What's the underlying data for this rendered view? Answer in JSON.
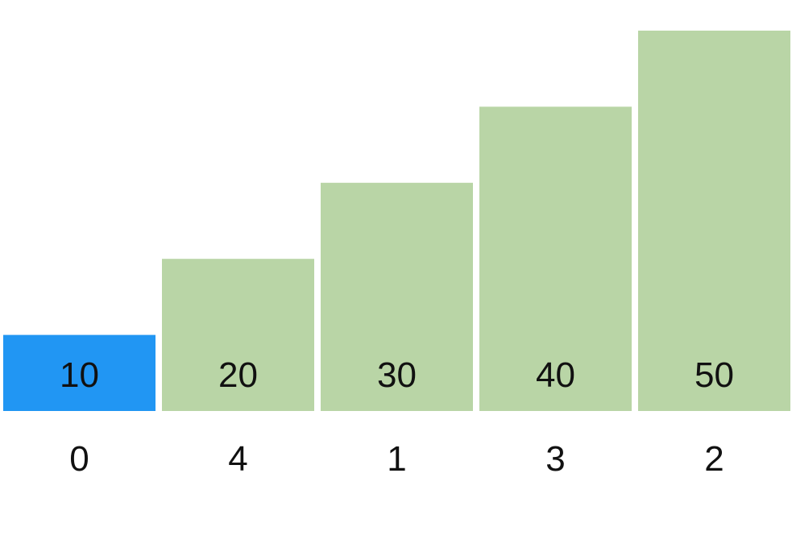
{
  "chart_data": {
    "type": "bar",
    "categories": [
      "0",
      "4",
      "1",
      "3",
      "2"
    ],
    "values": [
      10,
      20,
      30,
      40,
      50
    ],
    "highlighted_index": 0,
    "ylim": [
      0,
      50
    ],
    "grid": false,
    "title": "",
    "xlabel": "",
    "ylabel": ""
  },
  "colors": {
    "highlight": "#2196f3",
    "bar": "#b9d5a6",
    "background": "#ffffff",
    "text": "#111111"
  }
}
